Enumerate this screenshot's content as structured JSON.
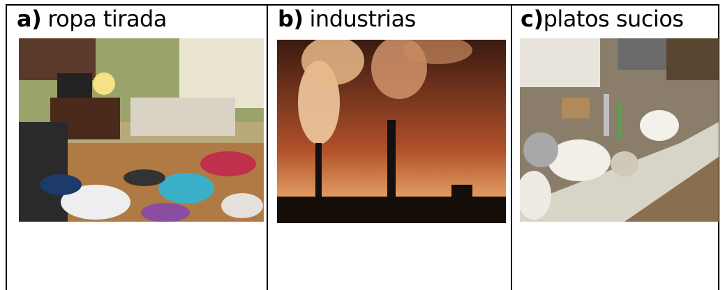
{
  "table": {
    "cells": [
      {
        "letter": "a)",
        "text": "ropa tirada"
      },
      {
        "letter": "b)",
        "text": "industrias"
      },
      {
        "letter": "c)",
        "text": "platos sucios"
      }
    ]
  }
}
